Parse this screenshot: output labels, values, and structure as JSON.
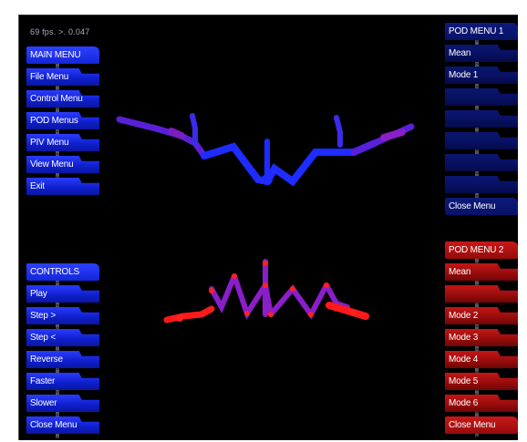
{
  "status": {
    "fps_text": "69 fps. >. 0.047"
  },
  "main_menu": {
    "items": [
      "MAIN MENU",
      "File Menu",
      "Control Menu",
      "POD Menus",
      "PIV Menu",
      "View Menu",
      "Exit"
    ]
  },
  "controls_menu": {
    "items": [
      "CONTROLS",
      "Play",
      "Step >",
      "Step <",
      "Reverse",
      "Faster",
      "Slower",
      "Close Menu"
    ]
  },
  "pod_menu_1": {
    "items": [
      "POD MENU 1",
      "Mean",
      "Mode 1",
      "",
      "",
      "",
      "",
      "",
      "Close Menu"
    ]
  },
  "pod_menu_2": {
    "items": [
      "POD MENU 2",
      "Mean",
      "",
      "Mode 2",
      "Mode 3",
      "Mode 4",
      "Mode 5",
      "Mode 6",
      "Close Menu"
    ]
  },
  "colors": {
    "background": "#000000",
    "menu_blue": "#1a2cf0",
    "menu_dark_blue": "#081268",
    "menu_red": "#b01010",
    "model_blue": "#1e2cff",
    "model_purple": "#8a1ec8",
    "model_red": "#ff1a1a"
  }
}
